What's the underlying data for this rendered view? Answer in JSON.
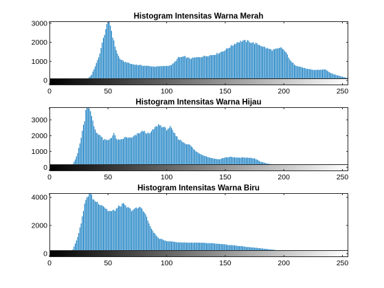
{
  "chart_data": [
    {
      "type": "bar",
      "title": "Histogram Intensitas Warna Merah",
      "xlabel": "",
      "ylabel": "",
      "xlim": [
        0,
        255
      ],
      "ylim": [
        -250,
        3100
      ],
      "xticks": [
        0,
        50,
        100,
        150,
        200,
        250
      ],
      "yticks": [
        0,
        1000,
        2000,
        3000
      ],
      "x_range": "0-255",
      "colorbar": "grayscale gradient 0-255 along x-axis",
      "bar_color": "#0072BD",
      "envelope": [
        [
          0,
          0
        ],
        [
          20,
          0
        ],
        [
          28,
          10
        ],
        [
          30,
          30
        ],
        [
          33,
          120
        ],
        [
          36,
          300
        ],
        [
          38,
          600
        ],
        [
          40,
          900
        ],
        [
          42,
          1200
        ],
        [
          44,
          1700
        ],
        [
          46,
          2200
        ],
        [
          48,
          2700
        ],
        [
          50,
          3050
        ],
        [
          51,
          3150
        ],
        [
          52,
          2900
        ],
        [
          54,
          2300
        ],
        [
          56,
          1800
        ],
        [
          58,
          1400
        ],
        [
          60,
          1150
        ],
        [
          63,
          1000
        ],
        [
          66,
          950
        ],
        [
          70,
          860
        ],
        [
          75,
          820
        ],
        [
          80,
          780
        ],
        [
          85,
          750
        ],
        [
          90,
          730
        ],
        [
          95,
          740
        ],
        [
          100,
          770
        ],
        [
          103,
          780
        ],
        [
          106,
          900
        ],
        [
          110,
          1200
        ],
        [
          115,
          1250
        ],
        [
          120,
          1150
        ],
        [
          125,
          1200
        ],
        [
          130,
          1250
        ],
        [
          135,
          1300
        ],
        [
          140,
          1350
        ],
        [
          145,
          1450
        ],
        [
          150,
          1600
        ],
        [
          155,
          1800
        ],
        [
          160,
          2000
        ],
        [
          165,
          2080
        ],
        [
          170,
          2050
        ],
        [
          175,
          1950
        ],
        [
          180,
          1850
        ],
        [
          185,
          1700
        ],
        [
          190,
          1600
        ],
        [
          195,
          1650
        ],
        [
          198,
          1720
        ],
        [
          200,
          1600
        ],
        [
          203,
          1350
        ],
        [
          206,
          1000
        ],
        [
          210,
          800
        ],
        [
          215,
          700
        ],
        [
          220,
          600
        ],
        [
          225,
          550
        ],
        [
          230,
          560
        ],
        [
          235,
          580
        ],
        [
          237,
          520
        ],
        [
          240,
          380
        ],
        [
          245,
          280
        ],
        [
          250,
          200
        ],
        [
          253,
          150
        ],
        [
          255,
          130
        ]
      ]
    },
    {
      "type": "bar",
      "title": "Histogram Intensitas Warna Hijau",
      "xlabel": "",
      "ylabel": "",
      "xlim": [
        0,
        255
      ],
      "ylim": [
        -250,
        3800
      ],
      "xticks": [
        0,
        50,
        100,
        150,
        200,
        250
      ],
      "yticks": [
        0,
        1000,
        2000,
        3000
      ],
      "colorbar": "grayscale gradient 0-255 along x-axis",
      "bar_color": "#0072BD",
      "envelope": [
        [
          0,
          0
        ],
        [
          10,
          10
        ],
        [
          15,
          40
        ],
        [
          18,
          100
        ],
        [
          20,
          200
        ],
        [
          22,
          500
        ],
        [
          24,
          900
        ],
        [
          26,
          1500
        ],
        [
          28,
          2300
        ],
        [
          30,
          3000
        ],
        [
          31,
          3600
        ],
        [
          32,
          3900
        ],
        [
          34,
          3800
        ],
        [
          36,
          3200
        ],
        [
          38,
          2600
        ],
        [
          40,
          2200
        ],
        [
          43,
          2050
        ],
        [
          46,
          1750
        ],
        [
          50,
          1700
        ],
        [
          53,
          1900
        ],
        [
          55,
          2150
        ],
        [
          57,
          1800
        ],
        [
          60,
          1700
        ],
        [
          65,
          1900
        ],
        [
          70,
          1850
        ],
        [
          75,
          2100
        ],
        [
          80,
          2300
        ],
        [
          85,
          2100
        ],
        [
          90,
          2500
        ],
        [
          93,
          2700
        ],
        [
          96,
          2600
        ],
        [
          100,
          2400
        ],
        [
          103,
          2550
        ],
        [
          106,
          2200
        ],
        [
          110,
          1800
        ],
        [
          115,
          1550
        ],
        [
          120,
          1400
        ],
        [
          125,
          1000
        ],
        [
          130,
          800
        ],
        [
          135,
          650
        ],
        [
          140,
          550
        ],
        [
          145,
          500
        ],
        [
          150,
          620
        ],
        [
          155,
          650
        ],
        [
          160,
          600
        ],
        [
          165,
          620
        ],
        [
          170,
          600
        ],
        [
          175,
          550
        ],
        [
          178,
          450
        ],
        [
          180,
          350
        ],
        [
          185,
          250
        ],
        [
          190,
          180
        ],
        [
          195,
          120
        ],
        [
          200,
          80
        ],
        [
          205,
          50
        ],
        [
          210,
          30
        ],
        [
          220,
          10
        ],
        [
          255,
          0
        ]
      ]
    },
    {
      "type": "bar",
      "title": "Histogram Intensitas Warna Biru",
      "xlabel": "",
      "ylabel": "",
      "xlim": [
        0,
        255
      ],
      "ylim": [
        -250,
        4300
      ],
      "xticks": [
        0,
        50,
        100,
        150,
        200,
        250
      ],
      "yticks": [
        0,
        2000,
        4000
      ],
      "colorbar": "grayscale gradient 0-255 along x-axis",
      "bar_color": "#0072BD",
      "envelope": [
        [
          0,
          0
        ],
        [
          12,
          20
        ],
        [
          15,
          50
        ],
        [
          18,
          120
        ],
        [
          20,
          300
        ],
        [
          22,
          700
        ],
        [
          24,
          1200
        ],
        [
          26,
          1800
        ],
        [
          28,
          2600
        ],
        [
          30,
          3500
        ],
        [
          32,
          4000
        ],
        [
          34,
          4300
        ],
        [
          36,
          4100
        ],
        [
          38,
          3800
        ],
        [
          42,
          3600
        ],
        [
          46,
          3400
        ],
        [
          50,
          3050
        ],
        [
          53,
          3000
        ],
        [
          56,
          3100
        ],
        [
          60,
          3400
        ],
        [
          63,
          3500
        ],
        [
          66,
          3300
        ],
        [
          70,
          3100
        ],
        [
          74,
          3200
        ],
        [
          78,
          3300
        ],
        [
          80,
          3100
        ],
        [
          83,
          2600
        ],
        [
          86,
          1900
        ],
        [
          90,
          1400
        ],
        [
          93,
          1100
        ],
        [
          96,
          1000
        ],
        [
          100,
          900
        ],
        [
          110,
          800
        ],
        [
          120,
          780
        ],
        [
          130,
          760
        ],
        [
          140,
          720
        ],
        [
          150,
          640
        ],
        [
          160,
          560
        ],
        [
          170,
          460
        ],
        [
          180,
          380
        ],
        [
          190,
          280
        ],
        [
          200,
          200
        ],
        [
          210,
          140
        ],
        [
          220,
          90
        ],
        [
          230,
          60
        ],
        [
          240,
          40
        ],
        [
          255,
          20
        ]
      ]
    }
  ]
}
